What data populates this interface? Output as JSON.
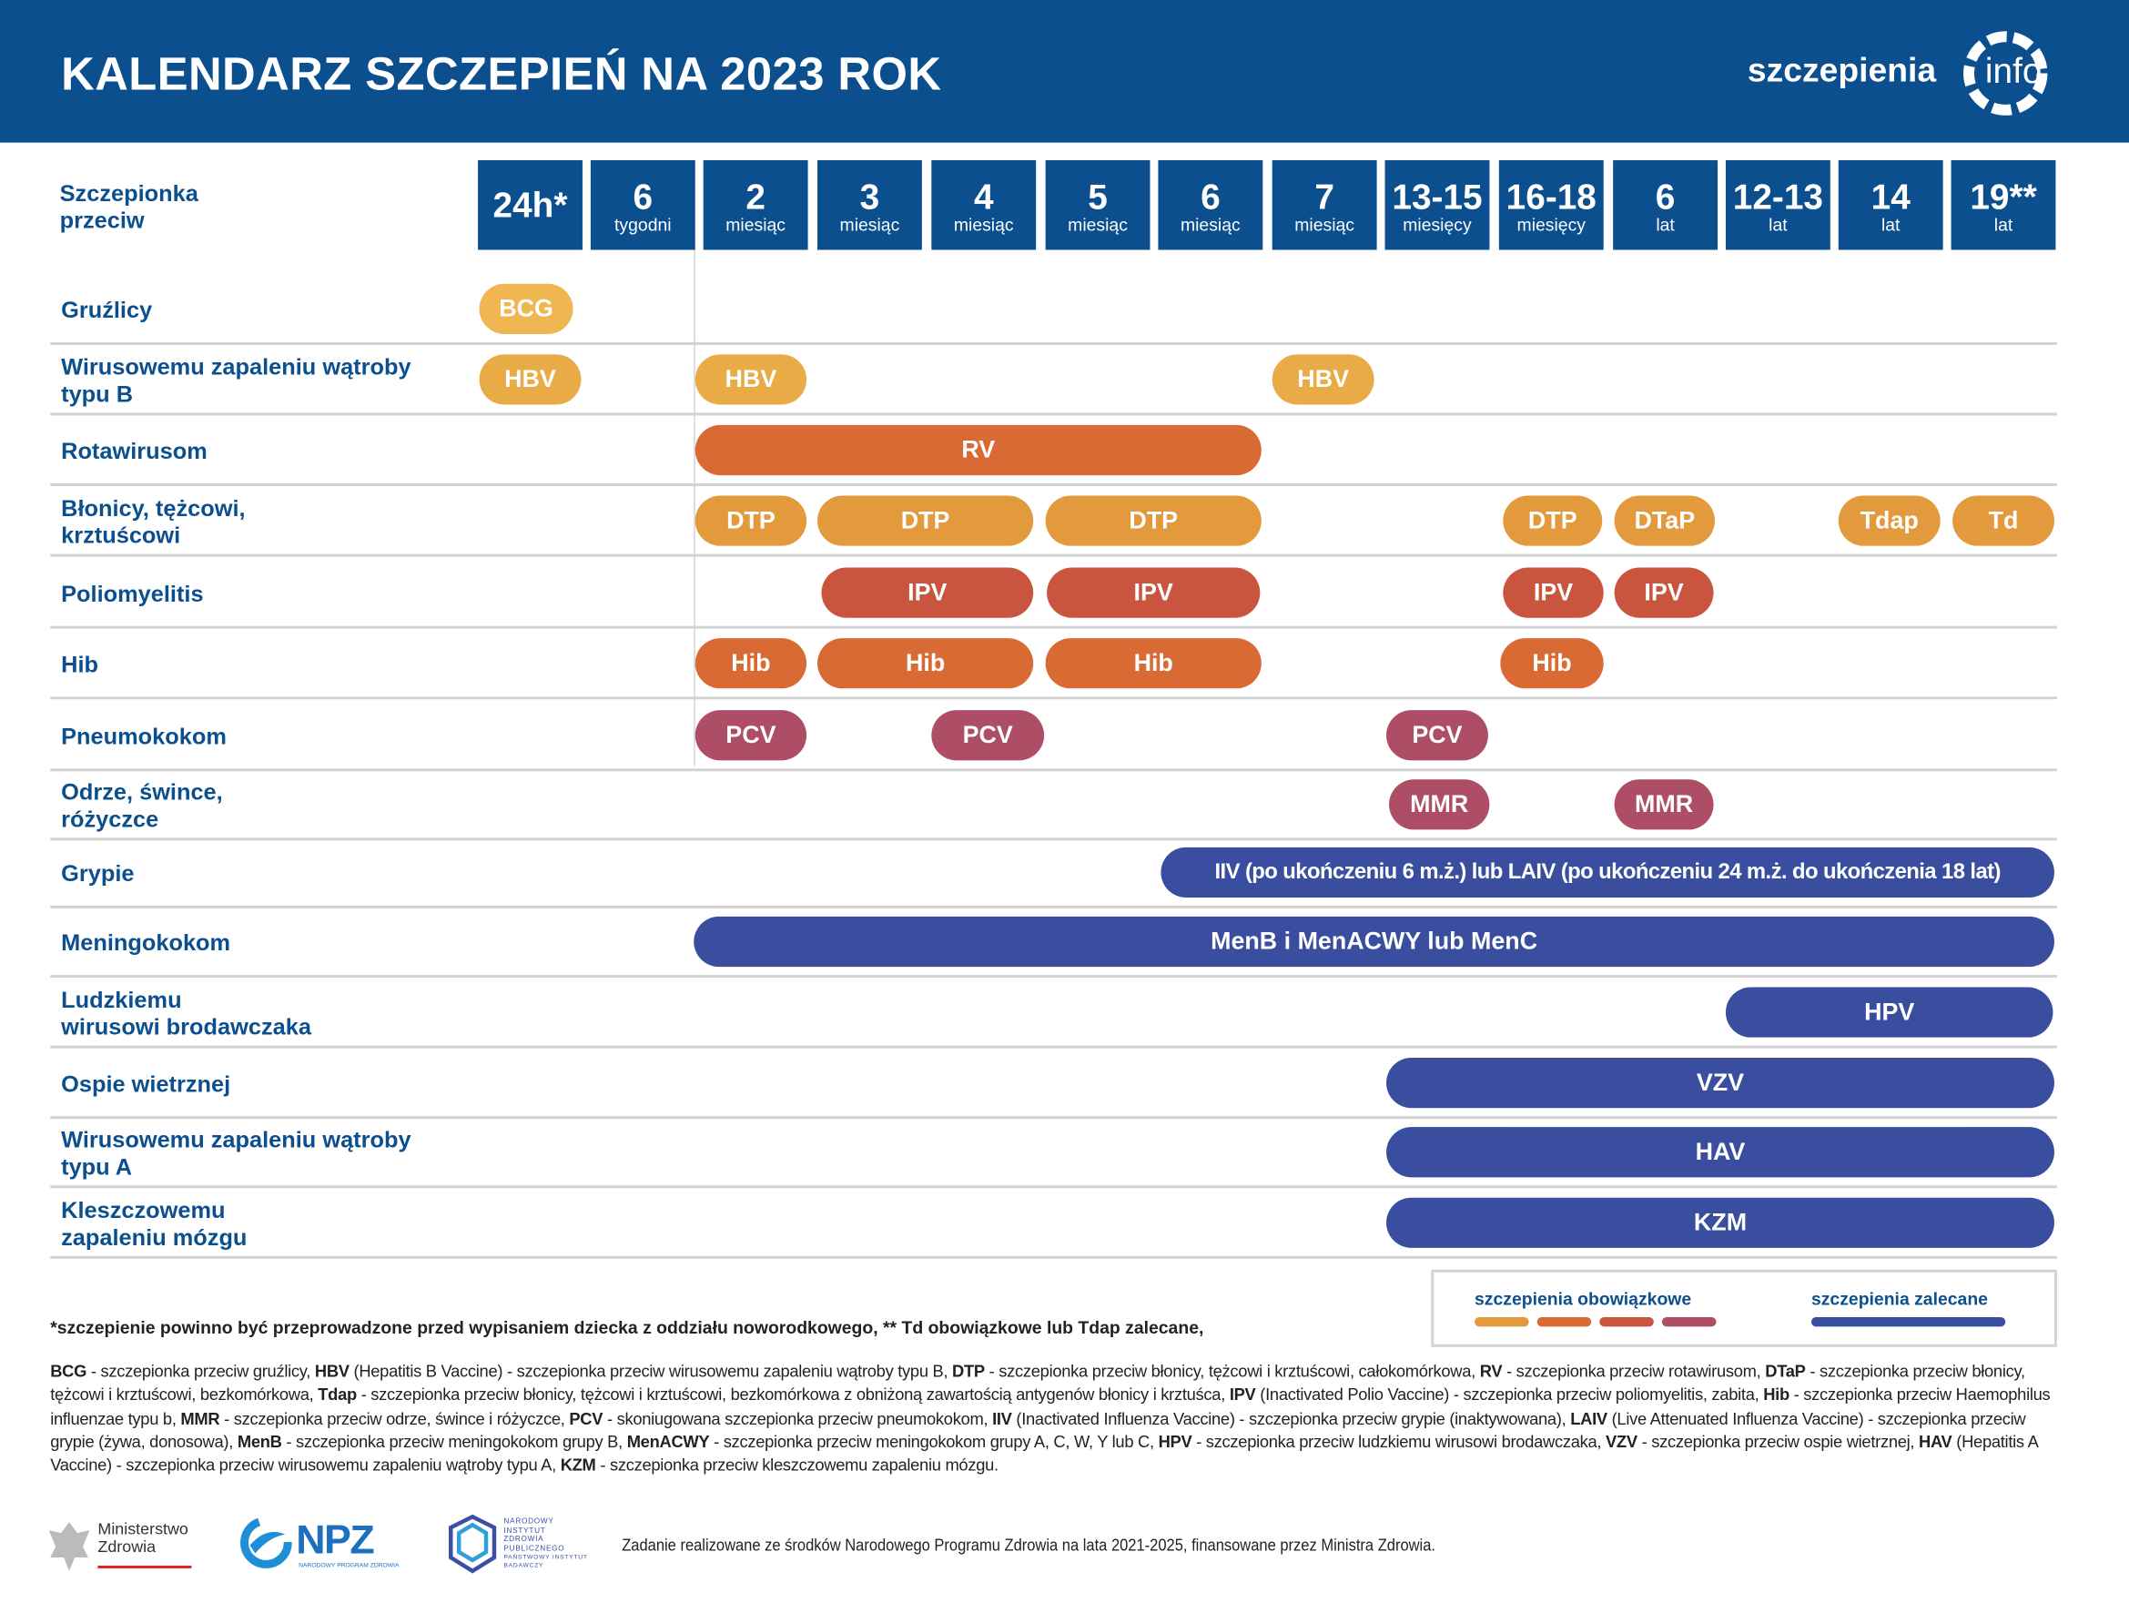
{
  "header": {
    "title": "KALENDARZ SZCZEPIEŃ NA 2023 ROK",
    "logo": {
      "text": "szczepienia",
      "suffix": "info"
    }
  },
  "table": {
    "corner": [
      "Szczepionka",
      "przeciw"
    ],
    "columns": [
      {
        "age": "24h*"
      },
      {
        "age": "6",
        "unit": "tygodni"
      },
      {
        "age": "2",
        "unit": "miesiąc"
      },
      {
        "age": "3",
        "unit": "miesiąc"
      },
      {
        "age": "4",
        "unit": "miesiąc"
      },
      {
        "age": "5",
        "unit": "miesiąc"
      },
      {
        "age": "6",
        "unit": "miesiąc"
      },
      {
        "age": "7",
        "unit": "miesiąc"
      },
      {
        "age": "13-15",
        "unit": "miesięcy"
      },
      {
        "age": "16-18",
        "unit": "miesięcy"
      },
      {
        "age": "6",
        "unit": "lat"
      },
      {
        "age": "12-13",
        "unit": "lat"
      },
      {
        "age": "14",
        "unit": "lat"
      },
      {
        "age": "19**",
        "unit": "lat"
      }
    ],
    "rows": [
      {
        "label": [
          "Gruźlicy"
        ],
        "vaccines": [
          "BCG"
        ]
      },
      {
        "label": [
          "Wirusowemu zapaleniu wątroby",
          "typu B"
        ],
        "vaccines": [
          "HBV",
          "HBV",
          "HBV"
        ]
      },
      {
        "label": [
          "Rotawirusom"
        ],
        "vaccines": [
          "RV"
        ]
      },
      {
        "label": [
          "Błonicy, tężcowi,",
          "krztuścowi"
        ],
        "vaccines": [
          "DTP",
          "DTP",
          "DTP",
          "DTP",
          "DTaP",
          "Tdap",
          "Td"
        ]
      },
      {
        "label": [
          "Poliomyelitis"
        ],
        "vaccines": [
          "IPV",
          "IPV",
          "IPV",
          "IPV"
        ]
      },
      {
        "label": [
          "Hib"
        ],
        "vaccines": [
          "Hib",
          "Hib",
          "Hib",
          "Hib"
        ]
      },
      {
        "label": [
          "Pneumokokom"
        ],
        "vaccines": [
          "PCV",
          "PCV",
          "PCV"
        ]
      },
      {
        "label": [
          "Odrze, śwince,",
          "różyczce"
        ],
        "vaccines": [
          "MMR",
          "MMR"
        ]
      },
      {
        "label": [
          "Grypie"
        ],
        "vaccines": [
          "IIV (po ukończeniu 6 m.ż.) lub LAIV (po ukończeniu 24 m.ż. do ukończenia 18 lat)"
        ]
      },
      {
        "label": [
          "Meningokokom"
        ],
        "vaccines": [
          "MenB i MenACWY lub MenC"
        ]
      },
      {
        "label": [
          "Ludzkiemu",
          "wirusowi brodawczaka"
        ],
        "vaccines": [
          "HPV"
        ]
      },
      {
        "label": [
          "Ospie wietrznej"
        ],
        "vaccines": [
          "VZV"
        ]
      },
      {
        "label": [
          "Wirusowemu zapaleniu wątroby",
          "typu A"
        ],
        "vaccines": [
          "HAV"
        ]
      },
      {
        "label": [
          "Kleszczowemu",
          "zapaleniu mózgu"
        ],
        "vaccines": [
          "KZM"
        ]
      }
    ]
  },
  "legend": {
    "mandatory": "szczepienia obowiązkowe",
    "recommended": "szczepienia zalecane"
  },
  "footnote": "*szczepienie powinno być przeprowadzone przed wypisaniem dziecka z oddziału noworodkowego, ** Td obowiązkowe lub Tdap zalecane,",
  "glossary": [
    {
      "abbr": "BCG",
      "text": " - szczepionka przeciw gruźlicy,"
    },
    {
      "abbr": "HBV",
      "text": " (Hepatitis B Vaccine) - szczepionka przeciw wirusowemu zapaleniu wątroby typu B,"
    },
    {
      "abbr": "DTP",
      "text": " - szczepionka przeciw błonicy, tężcowi i krztuścowi, całokomórkowa,"
    },
    {
      "abbr": "RV",
      "text": " - szczepionka przeciw rotawirusom,"
    },
    {
      "abbr": "DTaP",
      "text": " - szczepionka przeciw błonicy, tężcowi i krztuścowi, bezkomórkowa,"
    },
    {
      "abbr": "Tdap",
      "text": " - szczepionka przeciw błonicy, tężcowi i krztuścowi, bezkomórkowa z obniżoną zawartością antygenów błonicy i krztuśca,"
    },
    {
      "abbr": "IPV",
      "text": " (Inactivated Polio Vaccine) - szczepionka przeciw poliomyelitis, zabita,"
    },
    {
      "abbr": "Hib",
      "text": " - szczepionka przeciw Haemophilus influenzae typu b,"
    },
    {
      "abbr": "MMR",
      "text": " - szczepionka przeciw odrze, śwince i różyczce,"
    },
    {
      "abbr": "PCV",
      "text": " - skoniugowana szczepionka przeciw pneumokokom,"
    },
    {
      "abbr": "IIV",
      "text": " (Inactivated Influenza Vaccine) - szczepionka przeciw grypie (inaktywowana),"
    },
    {
      "abbr": "LAIV",
      "text": " (Live Attenuated Influenza Vaccine) - szczepionka przeciw grypie (żywa, donosowa),"
    },
    {
      "abbr": "MenB",
      "text": " - szczepionka przeciw meningokokom grupy B,"
    },
    {
      "abbr": "MenACWY",
      "text": " - szczepionka przeciw meningokokom grupy A, C, W, Y lub C,"
    },
    {
      "abbr": "HPV",
      "text": " - szczepionka przeciw ludzkiemu wirusowi brodawczaka,"
    },
    {
      "abbr": "VZV",
      "text": " - szczepionka przeciw ospie wietrznej,"
    },
    {
      "abbr": "HAV",
      "text": " (Hepatitis A Vaccine) - szczepionka przeciw wirusowemu zapaleniu wątroby typu A,"
    },
    {
      "abbr": "KZM",
      "text": " - szczepionka przeciw kleszczowemu zapaleniu mózgu."
    }
  ],
  "footer": {
    "ministry": [
      "Ministerstwo",
      "Zdrowia"
    ],
    "npz": "NPZ",
    "npz_full": "NARODOWY PROGRAM ZDROWIA",
    "nizp": [
      "NARODOWY",
      "INSTYTUT",
      "ZDROWIA",
      "PUBLICZNEGO"
    ],
    "nizp_sub": [
      "PAŃSTWOWY INSTYTUT",
      "BADAWCZY"
    ],
    "funding": "Zadanie realizowane ze środków Narodowego Programu Zdrowia na lata 2021-2025, finansowane przez Ministra Zdrowia."
  }
}
